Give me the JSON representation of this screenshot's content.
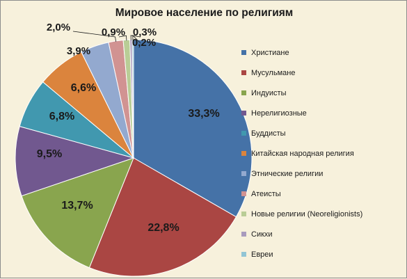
{
  "chart_data": {
    "type": "pie",
    "title": "Мировое население по религиям",
    "legend_position": "right",
    "start_angle_deg": 0,
    "direction": "clockwise",
    "slices": [
      {
        "name": "Христиане",
        "value": 33.3,
        "label": "33,3%",
        "color": "#4572a7"
      },
      {
        "name": "Мусульмане",
        "value": 22.8,
        "label": "22,8%",
        "color": "#aa4643"
      },
      {
        "name": "Индуисты",
        "value": 13.7,
        "label": "13,7%",
        "color": "#89a54e"
      },
      {
        "name": "Нерелигиозные",
        "value": 9.5,
        "label": "9,5%",
        "color": "#71588f"
      },
      {
        "name": "Буддисты",
        "value": 6.8,
        "label": "6,8%",
        "color": "#4198af"
      },
      {
        "name": "Китайская народная религия",
        "value": 6.6,
        "label": "6,6%",
        "color": "#db843d"
      },
      {
        "name": "Этнические  религии",
        "value": 3.9,
        "label": "3,9%",
        "color": "#93a9cf"
      },
      {
        "name": "Атеисты",
        "value": 2.0,
        "label": "2,0%",
        "color": "#d19392"
      },
      {
        "name": "Новые религии (Neoreligionists)",
        "value": 0.9,
        "label": "0,9%",
        "color": "#b9cd96"
      },
      {
        "name": "Сикхи",
        "value": 0.3,
        "label": "0,3%",
        "color": "#a99bbd"
      },
      {
        "name": "Евреи",
        "value": 0.2,
        "label": "0,2%",
        "color": "#92c5d4"
      }
    ]
  }
}
